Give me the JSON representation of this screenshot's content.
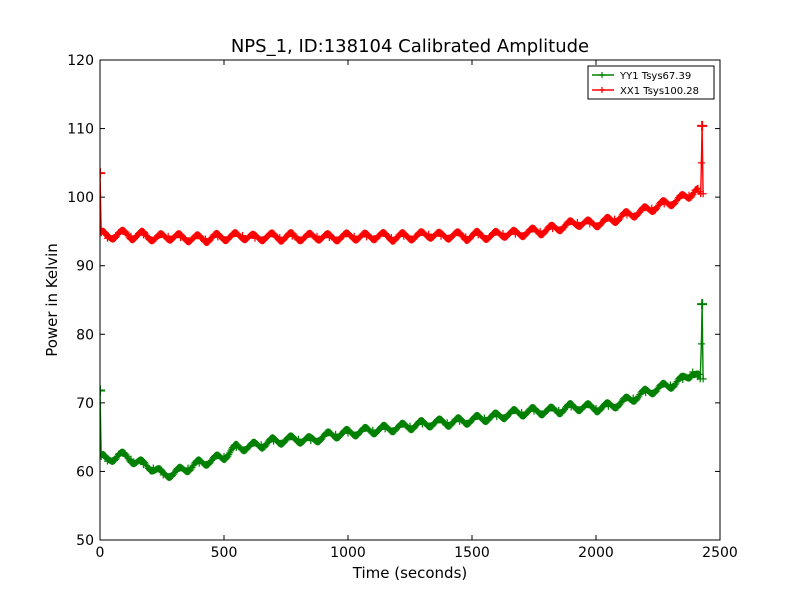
{
  "chart_data": {
    "type": "line",
    "title": "NPS_1, ID:138104 Calibrated Amplitude",
    "xlabel": "Time (seconds)",
    "ylabel": "Power in Kelvin",
    "xlim": [
      0,
      2500
    ],
    "ylim": [
      50,
      120
    ],
    "xticks": [
      0,
      500,
      1000,
      1500,
      2000,
      2500
    ],
    "yticks": [
      50,
      60,
      70,
      80,
      90,
      100,
      110,
      120
    ],
    "grid": false,
    "legend_position": "top-right",
    "series": [
      {
        "name": "YY1 Tsys67.39",
        "color": "#008000",
        "marker": "+",
        "x": [
          0,
          5,
          30,
          75,
          125,
          175,
          215,
          255,
          300,
          355,
          400,
          450,
          500,
          550,
          600,
          650,
          700,
          750,
          800,
          850,
          900,
          950,
          1000,
          1050,
          1100,
          1150,
          1200,
          1250,
          1300,
          1350,
          1400,
          1450,
          1500,
          1550,
          1600,
          1650,
          1700,
          1750,
          1800,
          1850,
          1900,
          1950,
          2000,
          2050,
          2100,
          2150,
          2200,
          2250,
          2300,
          2350,
          2390,
          2410,
          2420,
          2425,
          2428,
          2432
        ],
        "y": [
          71.8,
          62.2,
          61.5,
          62.5,
          61.8,
          61.0,
          60.5,
          59.5,
          59.8,
          60.5,
          61.2,
          61.6,
          62.2,
          63.5,
          63.6,
          63.9,
          64.4,
          64.6,
          64.7,
          64.5,
          65.1,
          65.4,
          65.6,
          65.8,
          66.0,
          66.2,
          66.4,
          66.6,
          66.9,
          67.1,
          67.1,
          67.3,
          67.5,
          67.8,
          68.0,
          68.4,
          68.6,
          68.8,
          68.8,
          68.9,
          69.4,
          69.4,
          69.2,
          69.5,
          70.0,
          70.7,
          71.5,
          72.1,
          72.6,
          73.4,
          74.5,
          73.8,
          73.5,
          78.6,
          84.4,
          73.5
        ]
      },
      {
        "name": "XX1 Tsys100.28",
        "color": "#ff0000",
        "marker": "+",
        "x": [
          0,
          5,
          30,
          75,
          125,
          175,
          225,
          275,
          325,
          375,
          425,
          475,
          525,
          575,
          625,
          675,
          725,
          775,
          825,
          875,
          925,
          975,
          1025,
          1075,
          1125,
          1175,
          1225,
          1275,
          1325,
          1375,
          1425,
          1475,
          1525,
          1575,
          1625,
          1675,
          1725,
          1775,
          1825,
          1875,
          1925,
          1975,
          2025,
          2075,
          2125,
          2175,
          2225,
          2275,
          2325,
          2375,
          2400,
          2415,
          2422,
          2425,
          2428,
          2432
        ],
        "y": [
          103.5,
          94.8,
          94.0,
          94.8,
          94.3,
          94.5,
          94.0,
          94.3,
          94.1,
          94.0,
          93.9,
          94.2,
          94.2,
          94.4,
          94.0,
          94.3,
          94.1,
          94.3,
          94.1,
          94.3,
          94.1,
          94.2,
          94.3,
          94.2,
          94.4,
          94.1,
          94.3,
          94.3,
          94.6,
          94.3,
          94.5,
          94.2,
          94.5,
          94.3,
          94.7,
          94.6,
          94.9,
          95.0,
          95.4,
          95.8,
          96.3,
          96.1,
          96.3,
          96.8,
          97.4,
          97.8,
          98.4,
          99.0,
          99.5,
          100.3,
          101.0,
          100.8,
          100.5,
          105.0,
          110.4,
          100.5
        ]
      }
    ]
  }
}
